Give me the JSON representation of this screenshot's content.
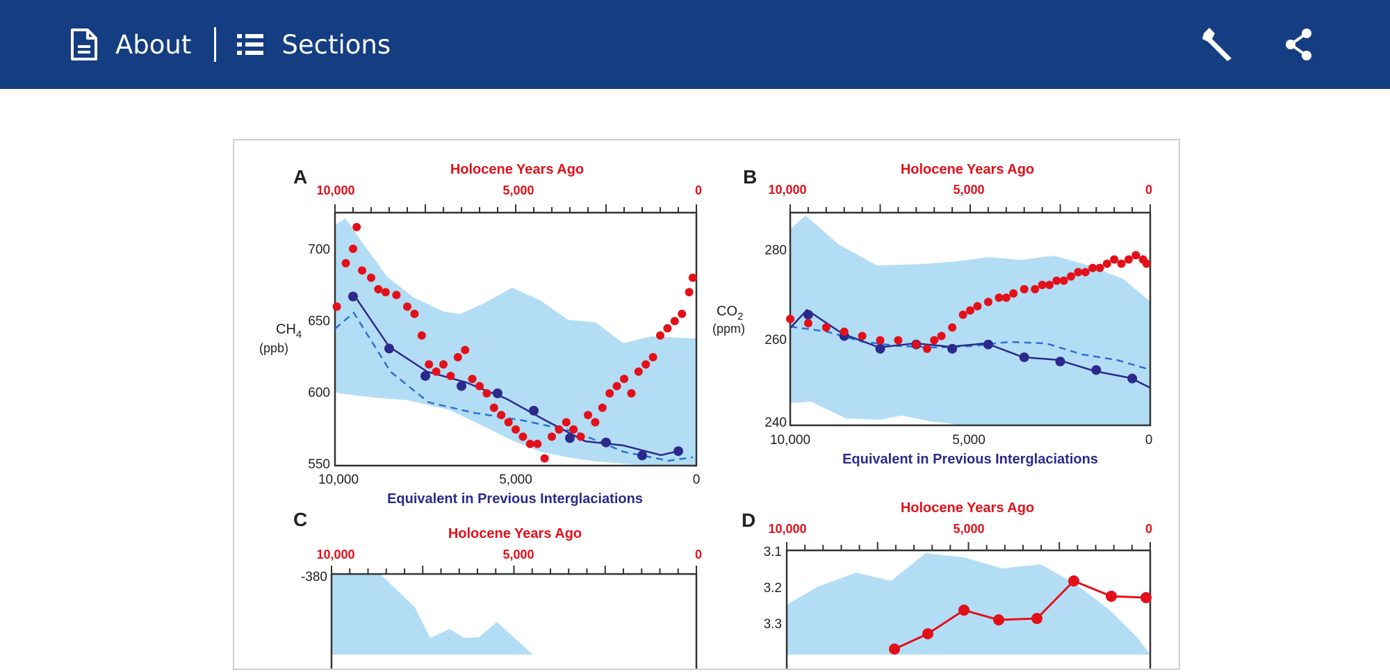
{
  "header": {
    "about_label": "About",
    "sections_label": "Sections",
    "background": "#143d82"
  },
  "figure": {
    "panels": [
      {
        "letter": "A",
        "top_title": "Holocene Years Ago",
        "top_ticks": [
          "10,000",
          "5,000",
          "0"
        ],
        "bottom_title": "Equivalent in Previous Interglaciations",
        "bottom_ticks": [
          "10,000",
          "5,000",
          "0"
        ],
        "ylabel_main": "CH",
        "ylabel_sub": "4",
        "ylabel_unit": "(ppb)",
        "yticks": [
          "700",
          "650",
          "600",
          "550"
        ]
      },
      {
        "letter": "B",
        "top_title": "Holocene Years Ago",
        "top_ticks": [
          "10,000",
          "5,000",
          "0"
        ],
        "bottom_title": "Equivalent in Previous Interglaciations",
        "bottom_ticks": [
          "10,000",
          "5,000",
          "0"
        ],
        "ylabel_main": "CO",
        "ylabel_sub": "2",
        "ylabel_unit": "(ppm)",
        "yticks": [
          "280",
          "260",
          "240"
        ]
      },
      {
        "letter": "C",
        "top_title": "Holocene Years Ago",
        "top_ticks": [
          "10,000",
          "5,000",
          "0"
        ],
        "yticks": [
          "-380"
        ]
      },
      {
        "letter": "D",
        "top_title": "Holocene Years Ago",
        "top_ticks": [
          "10,000",
          "5,000",
          "0"
        ],
        "yticks": [
          "3.1",
          "3.2",
          "3.3"
        ]
      }
    ],
    "colors": {
      "holocene": "#e3101a",
      "interglacial": "#2b2a8c",
      "envelope": "#b3ddf5"
    }
  },
  "chart_data": [
    {
      "type": "scatter",
      "panel": "A",
      "ylim": [
        550,
        725
      ],
      "xlim": [
        10000,
        0
      ],
      "series": [
        {
          "values_x": [
            9950,
            9700,
            9500,
            9400,
            9250,
            9000,
            8800,
            8600,
            8300,
            8000,
            7800,
            7600,
            7400,
            7200,
            7000,
            6800,
            6600,
            6400,
            6200,
            6000,
            5800,
            5600,
            5400,
            5200,
            5000,
            4800,
            4600,
            4400,
            4200,
            4000,
            3800,
            3600,
            3400,
            3200,
            3000,
            2800,
            2600,
            2400,
            2200,
            2000,
            1800,
            1600,
            1400,
            1200,
            1000,
            800,
            600,
            400,
            200,
            100
          ],
          "values_y": [
            660,
            690,
            700,
            715,
            685,
            680,
            672,
            670,
            668,
            660,
            655,
            640,
            620,
            615,
            620,
            612,
            625,
            630,
            610,
            605,
            600,
            590,
            585,
            580,
            575,
            570,
            565,
            565,
            555,
            570,
            575,
            580,
            575,
            570,
            585,
            580,
            590,
            600,
            605,
            610,
            600,
            615,
            620,
            625,
            640,
            645,
            650,
            655,
            670,
            680
          ]
        },
        {
          "name_hidden": "",
          "values_x": [
            9500,
            8500,
            7500,
            6500,
            5500,
            4500,
            3500,
            2500,
            1500,
            500
          ],
          "values_y": [
            667,
            631,
            612,
            605,
            600,
            588,
            569,
            566,
            557,
            560
          ]
        },
        {
          "values_x": [
            10000,
            9500,
            8500,
            7500,
            6500,
            5500,
            4500,
            3500,
            2500,
            1500,
            500
          ],
          "values_y": [
            645,
            655,
            628,
            612,
            604,
            598,
            591,
            575,
            570,
            562,
            565
          ]
        }
      ]
    },
    {
      "type": "scatter",
      "panel": "B",
      "ylim": [
        240,
        290
      ],
      "xlim": [
        10000,
        0
      ],
      "series": [
        {
          "values_x": [
            10000,
            9500,
            9000,
            8500,
            8000,
            7500,
            7000,
            6500,
            6200,
            6000,
            5800,
            5500,
            5200,
            5000,
            4800,
            4500,
            4200,
            4000,
            3800,
            3500,
            3200,
            3000,
            2800,
            2600,
            2400,
            2200,
            2000,
            1800,
            1600,
            1400,
            1200,
            1000,
            800,
            600,
            400,
            200,
            100
          ],
          "values_y": [
            265,
            264,
            263,
            262,
            261,
            260,
            260,
            259,
            258,
            260,
            261,
            263,
            266,
            267,
            268,
            269,
            270,
            270,
            271,
            272,
            272,
            273,
            273,
            274,
            274,
            275,
            276,
            276,
            277,
            277,
            278,
            279,
            278,
            279,
            280,
            279,
            278
          ]
        },
        {
          "values_x": [
            9500,
            8500,
            7500,
            6500,
            5500,
            4500,
            3500,
            2500,
            1500,
            500
          ],
          "values_y": [
            266,
            261,
            258,
            259,
            258,
            259,
            256,
            255,
            253,
            251
          ]
        },
        {
          "values_x": [
            10000,
            9000,
            8000,
            7000,
            6000,
            5000,
            4000,
            3000,
            2000,
            1000,
            0
          ],
          "values_y": [
            264,
            262,
            259,
            258,
            258,
            259,
            259,
            257,
            256,
            254,
            251
          ]
        }
      ]
    }
  ]
}
